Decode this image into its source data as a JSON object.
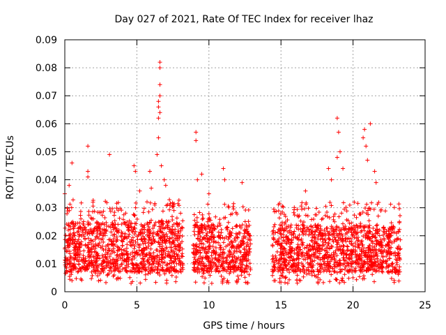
{
  "chart_data": {
    "type": "scatter",
    "title": "Day 027 of 2021, Rate Of TEC Index for receiver lhaz",
    "xlabel": "GPS time / hours",
    "ylabel": "ROTI / TECUs",
    "xlim": [
      0,
      25
    ],
    "ylim": [
      0,
      0.09
    ],
    "xticks": [
      0,
      5,
      10,
      15,
      20,
      25
    ],
    "xtick_labels": [
      "0",
      "5",
      "10",
      "15",
      "20",
      "25"
    ],
    "yticks": [
      0,
      0.01,
      0.02,
      0.03,
      0.04,
      0.05,
      0.06,
      0.07,
      0.08,
      0.09
    ],
    "ytick_labels": [
      "0",
      "0.01",
      "0.02",
      "0.03",
      "0.04",
      "0.05",
      "0.06",
      "0.07",
      "0.08",
      "0.09"
    ],
    "grid": true,
    "marker": "+",
    "color": "#ff0000",
    "series": [
      {
        "name": "ROTI",
        "segments": [
          {
            "x_start": 0.0,
            "x_end": 8.2,
            "y_low": 0.007,
            "y_high": 0.025
          },
          {
            "x_start": 8.9,
            "x_end": 12.9,
            "y_low": 0.007,
            "y_high": 0.024
          },
          {
            "x_start": 14.4,
            "x_end": 18.1,
            "y_low": 0.007,
            "y_high": 0.024
          },
          {
            "x_start": 18.1,
            "x_end": 23.3,
            "y_low": 0.007,
            "y_high": 0.024
          }
        ],
        "notable_points": [
          {
            "x": 0.0,
            "y": 0.035
          },
          {
            "x": 0.3,
            "y": 0.038
          },
          {
            "x": 0.5,
            "y": 0.046
          },
          {
            "x": 1.6,
            "y": 0.052
          },
          {
            "x": 1.6,
            "y": 0.043
          },
          {
            "x": 1.6,
            "y": 0.041
          },
          {
            "x": 3.1,
            "y": 0.049
          },
          {
            "x": 4.8,
            "y": 0.045
          },
          {
            "x": 4.9,
            "y": 0.043
          },
          {
            "x": 5.2,
            "y": 0.036
          },
          {
            "x": 5.9,
            "y": 0.043
          },
          {
            "x": 6.0,
            "y": 0.037
          },
          {
            "x": 6.4,
            "y": 0.049
          },
          {
            "x": 6.5,
            "y": 0.055
          },
          {
            "x": 6.5,
            "y": 0.062
          },
          {
            "x": 6.5,
            "y": 0.066
          },
          {
            "x": 6.5,
            "y": 0.068
          },
          {
            "x": 6.6,
            "y": 0.07
          },
          {
            "x": 6.6,
            "y": 0.074
          },
          {
            "x": 6.6,
            "y": 0.08
          },
          {
            "x": 6.6,
            "y": 0.082
          },
          {
            "x": 6.6,
            "y": 0.064
          },
          {
            "x": 6.7,
            "y": 0.045
          },
          {
            "x": 6.9,
            "y": 0.04
          },
          {
            "x": 7.0,
            "y": 0.038
          },
          {
            "x": 9.1,
            "y": 0.057
          },
          {
            "x": 9.1,
            "y": 0.054
          },
          {
            "x": 9.2,
            "y": 0.04
          },
          {
            "x": 9.5,
            "y": 0.042
          },
          {
            "x": 10.0,
            "y": 0.035
          },
          {
            "x": 11.0,
            "y": 0.044
          },
          {
            "x": 11.1,
            "y": 0.04
          },
          {
            "x": 12.3,
            "y": 0.039
          },
          {
            "x": 16.7,
            "y": 0.036
          },
          {
            "x": 18.3,
            "y": 0.044
          },
          {
            "x": 18.5,
            "y": 0.04
          },
          {
            "x": 18.9,
            "y": 0.048
          },
          {
            "x": 18.9,
            "y": 0.062
          },
          {
            "x": 19.0,
            "y": 0.057
          },
          {
            "x": 19.1,
            "y": 0.05
          },
          {
            "x": 19.3,
            "y": 0.044
          },
          {
            "x": 20.7,
            "y": 0.055
          },
          {
            "x": 20.8,
            "y": 0.058
          },
          {
            "x": 20.9,
            "y": 0.052
          },
          {
            "x": 21.0,
            "y": 0.047
          },
          {
            "x": 21.2,
            "y": 0.06
          },
          {
            "x": 21.5,
            "y": 0.043
          },
          {
            "x": 21.6,
            "y": 0.039
          },
          {
            "x": 0.5,
            "y": 0.004
          },
          {
            "x": 4.6,
            "y": 0.003
          },
          {
            "x": 10.2,
            "y": 0.003
          },
          {
            "x": 14.6,
            "y": 0.004
          },
          {
            "x": 20.0,
            "y": 0.005
          }
        ]
      }
    ]
  }
}
